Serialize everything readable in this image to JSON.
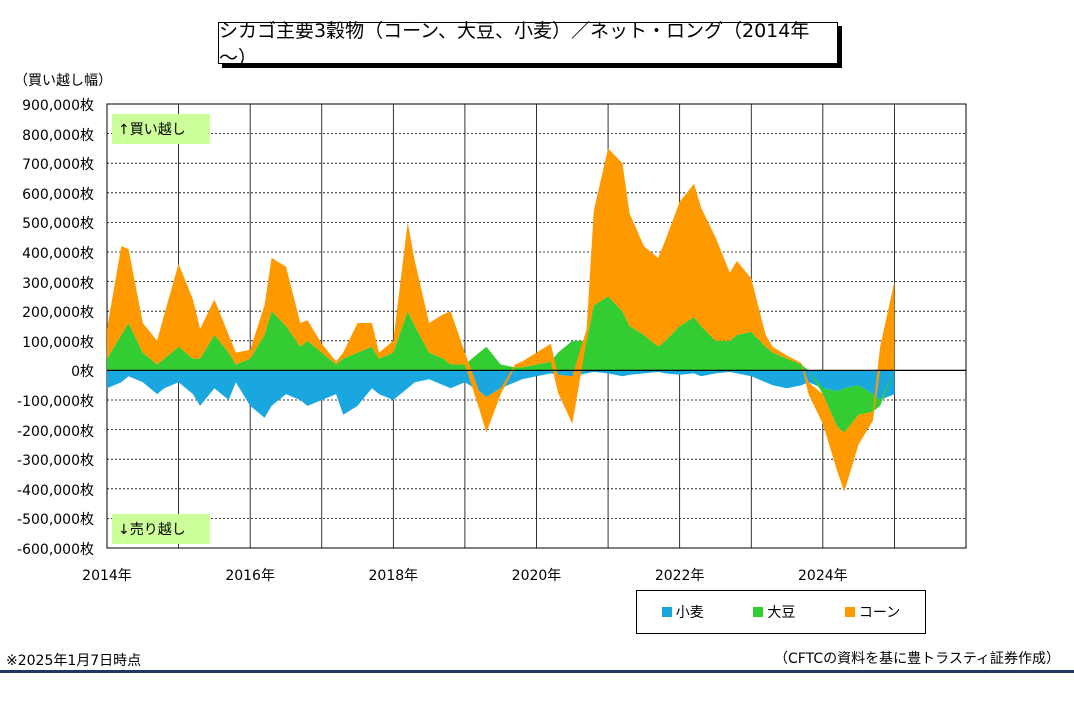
{
  "title": "シカゴ主要3穀物（コーン、大豆、小麦）／ネット・ロング（2014年～）",
  "y_unit_label": "（買い越し幅）",
  "flag_long": "↑買い越し",
  "flag_short": "↓売り越し",
  "footnote_left": "※2025年1月7日時点",
  "footnote_right": "（CFTCの資料を基に豊トラスティ証券作成）",
  "colors": {
    "wheat": "#1aa7e0",
    "soy": "#33cc33",
    "corn": "#ff9900",
    "flag_bg": "#ccff99",
    "rule": "#1f3864"
  },
  "chart_data": {
    "type": "area",
    "stacked": true,
    "x_unit": "year",
    "xlim": [
      2014,
      2026
    ],
    "ylim": [
      -600000,
      900000
    ],
    "y_ticks": [
      900000,
      800000,
      700000,
      600000,
      500000,
      400000,
      300000,
      200000,
      100000,
      0,
      -100000,
      -200000,
      -300000,
      -400000,
      -500000,
      -600000
    ],
    "y_tick_labels": [
      "900,000枚",
      "800,000枚",
      "700,000枚",
      "600,000枚",
      "500,000枚",
      "400,000枚",
      "300,000枚",
      "200,000枚",
      "100,000枚",
      "0枚",
      "-100,000枚",
      "-200,000枚",
      "-300,000枚",
      "-400,000枚",
      "-500,000枚",
      "-600,000枚"
    ],
    "x_ticks": [
      2014,
      2016,
      2018,
      2020,
      2022,
      2024
    ],
    "x_tick_labels": [
      "2014年",
      "2016年",
      "2018年",
      "2020年",
      "2022年",
      "2024年"
    ],
    "grid": true,
    "legend_position": "bottom-right",
    "x": [
      2014.0,
      2014.2,
      2014.3,
      2014.5,
      2014.7,
      2014.8,
      2015.0,
      2015.2,
      2015.3,
      2015.5,
      2015.7,
      2015.8,
      2016.0,
      2016.2,
      2016.3,
      2016.5,
      2016.7,
      2016.8,
      2017.0,
      2017.2,
      2017.3,
      2017.5,
      2017.7,
      2017.8,
      2018.0,
      2018.2,
      2018.3,
      2018.5,
      2018.7,
      2018.8,
      2019.0,
      2019.2,
      2019.3,
      2019.5,
      2019.7,
      2019.8,
      2020.0,
      2020.2,
      2020.3,
      2020.5,
      2020.7,
      2020.8,
      2021.0,
      2021.2,
      2021.3,
      2021.5,
      2021.7,
      2021.8,
      2022.0,
      2022.2,
      2022.3,
      2022.5,
      2022.7,
      2022.8,
      2023.0,
      2023.2,
      2023.3,
      2023.5,
      2023.7,
      2023.8,
      2024.0,
      2024.2,
      2024.3,
      2024.5,
      2024.7,
      2024.8,
      2025.0
    ],
    "series": [
      {
        "name": "小麦",
        "color": "#1aa7e0",
        "values": [
          -60000,
          -40000,
          -20000,
          -40000,
          -80000,
          -60000,
          -40000,
          -80000,
          -120000,
          -60000,
          -100000,
          -40000,
          -120000,
          -160000,
          -120000,
          -80000,
          -100000,
          -120000,
          -100000,
          -80000,
          -150000,
          -120000,
          -60000,
          -80000,
          -100000,
          -60000,
          -40000,
          -30000,
          -50000,
          -60000,
          -40000,
          -70000,
          -90000,
          -60000,
          -40000,
          -30000,
          -20000,
          -10000,
          -15000,
          -20000,
          -10000,
          -5000,
          -10000,
          -20000,
          -15000,
          -10000,
          -5000,
          -10000,
          -15000,
          -10000,
          -20000,
          -10000,
          -5000,
          -10000,
          -20000,
          -40000,
          -50000,
          -60000,
          -50000,
          -40000,
          -60000,
          -70000,
          -60000,
          -50000,
          -80000,
          -100000,
          -80000
        ]
      },
      {
        "name": "大豆",
        "color": "#33cc33",
        "values": [
          40000,
          120000,
          160000,
          60000,
          20000,
          40000,
          80000,
          40000,
          40000,
          120000,
          60000,
          20000,
          40000,
          120000,
          200000,
          150000,
          80000,
          100000,
          60000,
          20000,
          40000,
          60000,
          80000,
          40000,
          60000,
          200000,
          150000,
          60000,
          40000,
          20000,
          20000,
          60000,
          80000,
          20000,
          10000,
          10000,
          20000,
          30000,
          60000,
          100000,
          100000,
          220000,
          250000,
          200000,
          150000,
          120000,
          80000,
          100000,
          150000,
          180000,
          150000,
          100000,
          100000,
          120000,
          130000,
          80000,
          60000,
          40000,
          20000,
          0,
          -20000,
          -120000,
          -150000,
          -100000,
          -60000,
          -20000,
          0
        ]
      },
      {
        "name": "コーン",
        "color": "#ff9900",
        "values": [
          100000,
          300000,
          250000,
          100000,
          80000,
          150000,
          280000,
          200000,
          100000,
          120000,
          60000,
          40000,
          30000,
          100000,
          180000,
          200000,
          80000,
          70000,
          30000,
          10000,
          20000,
          100000,
          80000,
          20000,
          40000,
          300000,
          220000,
          100000,
          150000,
          180000,
          40000,
          -60000,
          -120000,
          -20000,
          10000,
          20000,
          40000,
          60000,
          -60000,
          -160000,
          40000,
          320000,
          500000,
          500000,
          380000,
          300000,
          300000,
          340000,
          420000,
          450000,
          400000,
          350000,
          230000,
          250000,
          180000,
          40000,
          20000,
          10000,
          5000,
          -40000,
          -100000,
          -150000,
          -200000,
          -100000,
          -30000,
          80000,
          300000
        ]
      }
    ]
  }
}
